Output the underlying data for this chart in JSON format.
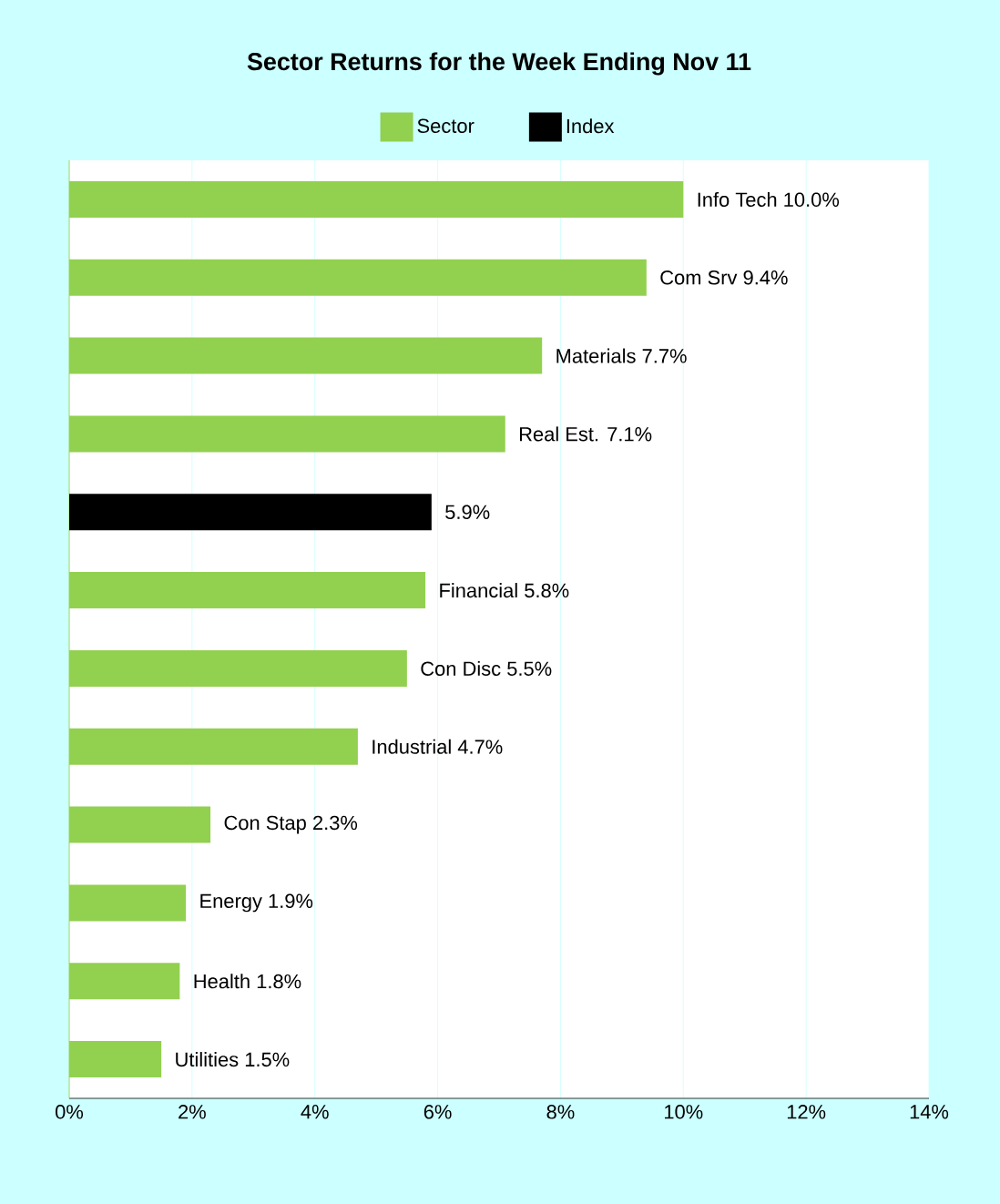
{
  "chart_data": {
    "type": "bar",
    "orientation": "horizontal",
    "title": "Sector Returns for the Week Ending Nov 11",
    "categories": [
      null,
      null,
      null,
      null,
      null,
      null,
      null,
      null,
      null,
      null,
      null,
      null
    ],
    "series": [
      {
        "name": "Sector",
        "color": "#92d050",
        "values": [
          10.0,
          9.4,
          7.7,
          7.1,
          null,
          5.8,
          5.5,
          4.7,
          2.3,
          1.9,
          1.8,
          1.5
        ],
        "value_labels": [
          "Info Tech 10.0%",
          "Com Srv 9.4%",
          "Materials 7.7%",
          "Real Est. 7.1%",
          null,
          "Financial 5.8%",
          "Con Disc 5.5%",
          "Industrial 4.7%",
          "Con Stap 2.3%",
          "Energy 1.9%",
          "Health 1.8%",
          "Utilities 1.5%"
        ]
      },
      {
        "name": "Index",
        "color": "#000000",
        "values": [
          null,
          null,
          null,
          null,
          5.9,
          null,
          null,
          null,
          null,
          null,
          null,
          null
        ],
        "value_labels": [
          null,
          null,
          null,
          null,
          "5.9%",
          null,
          null,
          null,
          null,
          null,
          null,
          null
        ]
      }
    ],
    "xlim": [
      0,
      14
    ],
    "xticks": [
      {
        "value": 0,
        "label": "0%"
      },
      {
        "value": 2,
        "label": "2%"
      },
      {
        "value": 4,
        "label": "4%"
      },
      {
        "value": 6,
        "label": "6%"
      },
      {
        "value": 8,
        "label": "8%"
      },
      {
        "value": 10,
        "label": "10%"
      },
      {
        "value": 12,
        "label": "12%"
      },
      {
        "value": 14,
        "label": "14%"
      }
    ],
    "grid": "x",
    "legend": "top"
  }
}
